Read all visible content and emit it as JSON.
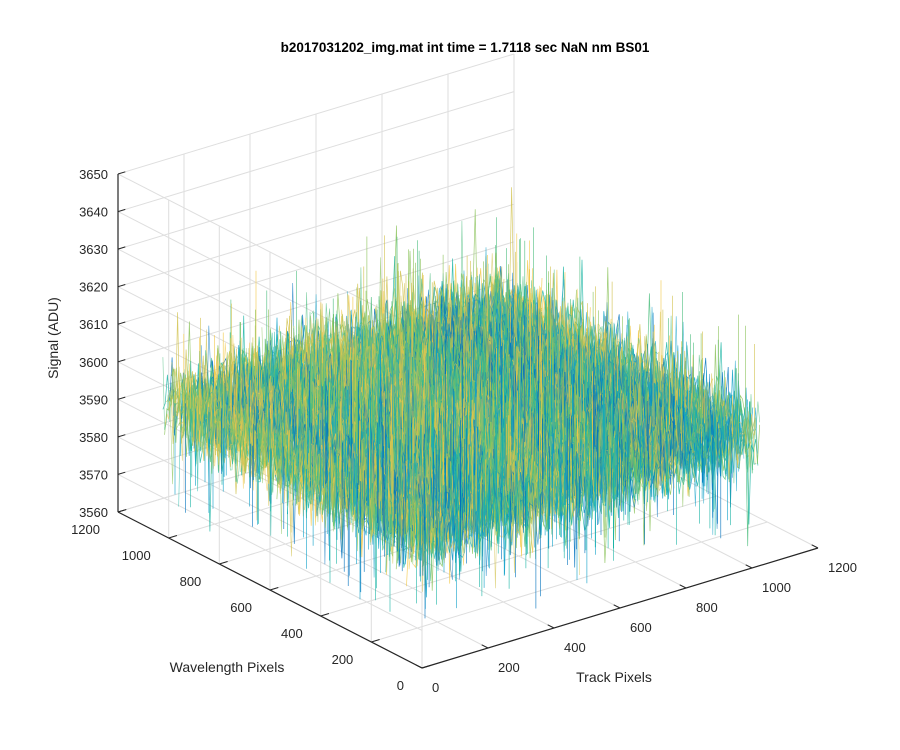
{
  "chart_data": {
    "type": "surface",
    "title": "b2017031202_img.mat int time = 1.7118 sec  NaN nm BS01",
    "xlabel": "Track Pixels",
    "ylabel": "Wavelength Pixels",
    "zlabel": "Signal (ADU)",
    "xlim": [
      0,
      1200
    ],
    "ylim": [
      0,
      1200
    ],
    "zlim": [
      3560,
      3650
    ],
    "x_ticks": [
      0,
      200,
      400,
      600,
      800,
      1000,
      1200
    ],
    "y_ticks": [
      0,
      200,
      400,
      600,
      800,
      1000,
      1200
    ],
    "z_ticks": [
      3560,
      3570,
      3580,
      3590,
      3600,
      3610,
      3620,
      3630,
      3640,
      3650
    ],
    "x_tick_labels": [
      "0",
      "200",
      "400",
      "600",
      "800",
      "1000",
      "1200"
    ],
    "y_tick_labels": [
      "0",
      "200",
      "400",
      "600",
      "800",
      "1000",
      "1200"
    ],
    "z_tick_labels": [
      "3560",
      "3570",
      "3580",
      "3590",
      "3600",
      "3610",
      "3620",
      "3630",
      "3640",
      "3650"
    ],
    "data_extent": {
      "x": [
        1,
        1024
      ],
      "y": [
        1,
        1024
      ]
    },
    "signal_mean": 3595,
    "signal_range": [
      3565,
      3630
    ],
    "grid": true,
    "colormap": [
      "#0072BD",
      "#0FA0C8",
      "#1BB5A5",
      "#4DBE7F",
      "#8CC35C",
      "#D1C24E",
      "#F2C94A"
    ]
  }
}
